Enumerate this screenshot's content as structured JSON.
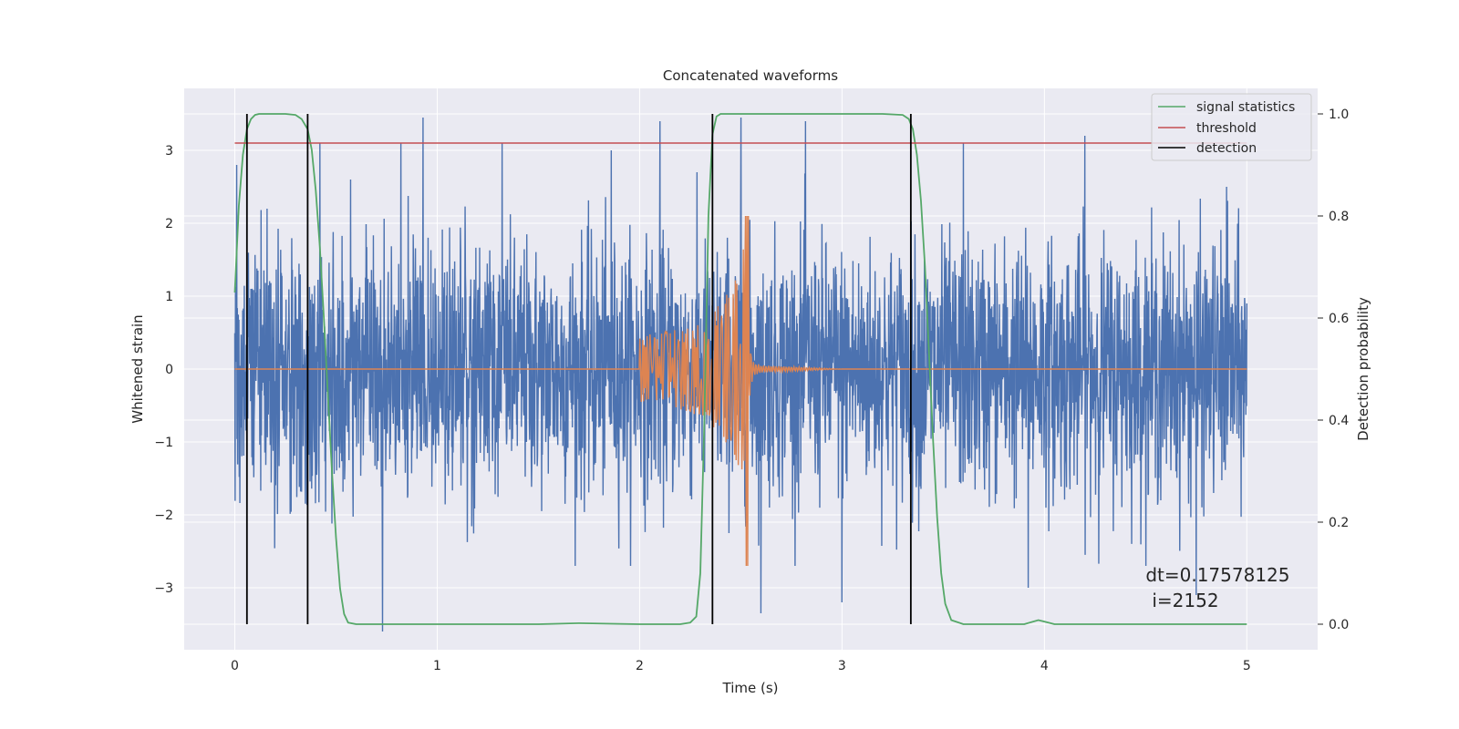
{
  "chart_data": {
    "type": "line",
    "title": "Concatenated waveforms",
    "xlabel": "Time (s)",
    "ylabel": "Whitened strain",
    "ylabel_right": "Detection probability",
    "xlim": [
      -0.25,
      5.35
    ],
    "ylim": [
      -3.85,
      3.85
    ],
    "ylim_right": [
      -0.05,
      1.05
    ],
    "xticks": [
      0,
      1,
      2,
      3,
      4,
      5
    ],
    "xtick_labels": [
      "0",
      "1",
      "2",
      "3",
      "4",
      "5"
    ],
    "yticks": [
      -3,
      -2,
      -1,
      0,
      1,
      2,
      3
    ],
    "ytick_labels": [
      "−3",
      "−2",
      "−1",
      "0",
      "1",
      "2",
      "3"
    ],
    "yticks_right": [
      0.0,
      0.2,
      0.4,
      0.6,
      0.8,
      1.0
    ],
    "ytick_labels_right": [
      "0.0",
      "0.2",
      "0.4",
      "0.6",
      "0.8",
      "1.0"
    ],
    "grid": true,
    "legend_position": "top-right",
    "colors": {
      "noise": "#4c72b0",
      "template": "#dd8452",
      "signal_statistics": "#55a868",
      "threshold": "#c44e52",
      "detection": "#000000",
      "background": "#eaeaf2",
      "grid": "#ffffff"
    },
    "series": [
      {
        "name": "signal statistics",
        "axis": "right",
        "x": [
          0,
          0.02,
          0.04,
          0.06,
          0.08,
          0.1,
          0.12,
          0.15,
          0.2,
          0.25,
          0.3,
          0.33,
          0.36,
          0.38,
          0.4,
          0.42,
          0.44,
          0.46,
          0.48,
          0.5,
          0.52,
          0.54,
          0.56,
          0.6,
          1.0,
          1.5,
          1.7,
          2.0,
          2.2,
          2.25,
          2.28,
          2.3,
          2.32,
          2.34,
          2.36,
          2.38,
          2.4,
          2.45,
          2.6,
          3.0,
          3.2,
          3.3,
          3.33,
          3.35,
          3.37,
          3.39,
          3.41,
          3.43,
          3.45,
          3.47,
          3.49,
          3.51,
          3.54,
          3.6,
          3.9,
          3.97,
          4.05,
          4.5,
          5.0
        ],
        "values": [
          0.65,
          0.82,
          0.92,
          0.97,
          0.99,
          0.998,
          1.0,
          1.0,
          1.0,
          1.0,
          0.998,
          0.99,
          0.97,
          0.93,
          0.85,
          0.74,
          0.6,
          0.45,
          0.3,
          0.17,
          0.07,
          0.02,
          0.003,
          0.0,
          0.0,
          0.0,
          0.002,
          0.0,
          0.0,
          0.003,
          0.015,
          0.1,
          0.4,
          0.8,
          0.96,
          0.995,
          1.0,
          1.0,
          1.0,
          1.0,
          1.0,
          0.998,
          0.99,
          0.97,
          0.92,
          0.83,
          0.7,
          0.53,
          0.36,
          0.21,
          0.1,
          0.04,
          0.008,
          0.0,
          0.0,
          0.008,
          0.0,
          0.0,
          0.0
        ]
      },
      {
        "name": "threshold",
        "axis": "left",
        "x": [
          0,
          5
        ],
        "values": [
          3.1,
          3.1
        ]
      },
      {
        "name": "detection",
        "axis": "right",
        "x_positions": [
          0.06,
          0.36,
          2.36,
          3.34
        ],
        "range": [
          0.0,
          1.0
        ]
      },
      {
        "name": "",
        "axis": "left",
        "kind": "noise",
        "x_range": [
          0,
          5
        ],
        "typical_amplitude": 1.0,
        "spikes": [
          {
            "x": 0.01,
            "y": 2.8
          },
          {
            "x": 0.16,
            "y": 2.2
          },
          {
            "x": 0.42,
            "y": 3.1
          },
          {
            "x": 0.73,
            "y": -3.6
          },
          {
            "x": 0.82,
            "y": 3.1
          },
          {
            "x": 0.93,
            "y": 3.45
          },
          {
            "x": 1.32,
            "y": 3.1
          },
          {
            "x": 1.86,
            "y": 3.0
          },
          {
            "x": 2.1,
            "y": 3.4
          },
          {
            "x": 2.5,
            "y": 3.45
          },
          {
            "x": 2.6,
            "y": -3.35
          },
          {
            "x": 2.82,
            "y": 3.4
          },
          {
            "x": 3.0,
            "y": -3.2
          },
          {
            "x": 3.6,
            "y": 3.1
          },
          {
            "x": 3.92,
            "y": -3.0
          },
          {
            "x": 4.2,
            "y": 3.2
          },
          {
            "x": 4.75,
            "y": -3.1
          },
          {
            "x": 4.9,
            "y": 2.5
          }
        ]
      },
      {
        "name": "",
        "axis": "left",
        "kind": "chirp",
        "x": [
          2.0,
          2.1,
          2.2,
          2.3,
          2.35,
          2.4,
          2.45,
          2.5,
          2.52,
          2.53,
          2.54,
          2.56,
          2.6,
          3.0
        ],
        "envelope": [
          0.45,
          0.5,
          0.55,
          0.65,
          0.75,
          0.9,
          1.1,
          1.4,
          1.8,
          2.1,
          0.5,
          0.1,
          0.05,
          0.0
        ],
        "peak_low": -2.7
      }
    ],
    "annotation": {
      "line1": "dt=0.17578125",
      "line2": "i=2152",
      "x": 4.5,
      "y": -3.0
    }
  }
}
